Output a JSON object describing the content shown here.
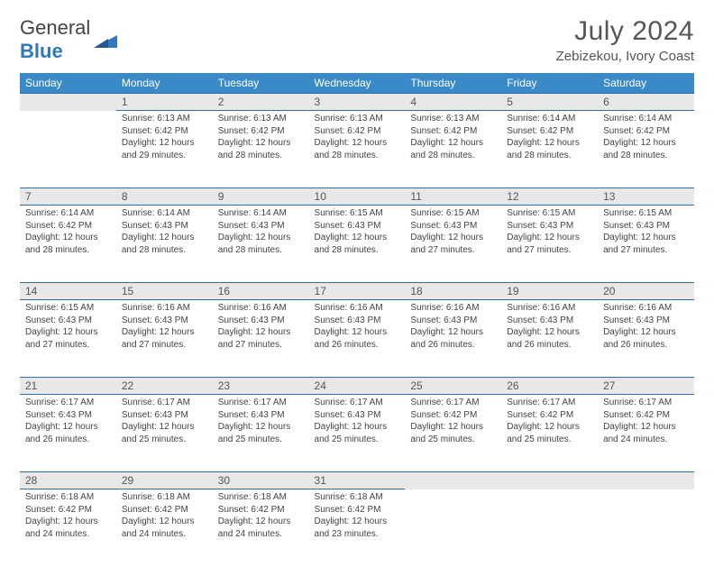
{
  "brand": {
    "text1": "General",
    "text2": "Blue"
  },
  "header": {
    "title": "July 2024",
    "location": "Zebizekou, Ivory Coast"
  },
  "colors": {
    "header_bg": "#3a8ac8",
    "header_text": "#ffffff",
    "row_accent": "#2f6fa8",
    "daynum_bg": "#e8e8e8",
    "text": "#444444",
    "brand_blue": "#2f78bd"
  },
  "typography": {
    "title_fontsize": 30,
    "location_fontsize": 15,
    "weekday_fontsize": 12,
    "daynum_fontsize": 12,
    "body_fontsize": 10
  },
  "weekdays": [
    "Sunday",
    "Monday",
    "Tuesday",
    "Wednesday",
    "Thursday",
    "Friday",
    "Saturday"
  ],
  "weeks": [
    [
      null,
      {
        "n": "1",
        "sr": "6:13 AM",
        "ss": "6:42 PM",
        "dl": "12 hours and 29 minutes."
      },
      {
        "n": "2",
        "sr": "6:13 AM",
        "ss": "6:42 PM",
        "dl": "12 hours and 28 minutes."
      },
      {
        "n": "3",
        "sr": "6:13 AM",
        "ss": "6:42 PM",
        "dl": "12 hours and 28 minutes."
      },
      {
        "n": "4",
        "sr": "6:13 AM",
        "ss": "6:42 PM",
        "dl": "12 hours and 28 minutes."
      },
      {
        "n": "5",
        "sr": "6:14 AM",
        "ss": "6:42 PM",
        "dl": "12 hours and 28 minutes."
      },
      {
        "n": "6",
        "sr": "6:14 AM",
        "ss": "6:42 PM",
        "dl": "12 hours and 28 minutes."
      }
    ],
    [
      {
        "n": "7",
        "sr": "6:14 AM",
        "ss": "6:42 PM",
        "dl": "12 hours and 28 minutes."
      },
      {
        "n": "8",
        "sr": "6:14 AM",
        "ss": "6:43 PM",
        "dl": "12 hours and 28 minutes."
      },
      {
        "n": "9",
        "sr": "6:14 AM",
        "ss": "6:43 PM",
        "dl": "12 hours and 28 minutes."
      },
      {
        "n": "10",
        "sr": "6:15 AM",
        "ss": "6:43 PM",
        "dl": "12 hours and 28 minutes."
      },
      {
        "n": "11",
        "sr": "6:15 AM",
        "ss": "6:43 PM",
        "dl": "12 hours and 27 minutes."
      },
      {
        "n": "12",
        "sr": "6:15 AM",
        "ss": "6:43 PM",
        "dl": "12 hours and 27 minutes."
      },
      {
        "n": "13",
        "sr": "6:15 AM",
        "ss": "6:43 PM",
        "dl": "12 hours and 27 minutes."
      }
    ],
    [
      {
        "n": "14",
        "sr": "6:15 AM",
        "ss": "6:43 PM",
        "dl": "12 hours and 27 minutes."
      },
      {
        "n": "15",
        "sr": "6:16 AM",
        "ss": "6:43 PM",
        "dl": "12 hours and 27 minutes."
      },
      {
        "n": "16",
        "sr": "6:16 AM",
        "ss": "6:43 PM",
        "dl": "12 hours and 27 minutes."
      },
      {
        "n": "17",
        "sr": "6:16 AM",
        "ss": "6:43 PM",
        "dl": "12 hours and 26 minutes."
      },
      {
        "n": "18",
        "sr": "6:16 AM",
        "ss": "6:43 PM",
        "dl": "12 hours and 26 minutes."
      },
      {
        "n": "19",
        "sr": "6:16 AM",
        "ss": "6:43 PM",
        "dl": "12 hours and 26 minutes."
      },
      {
        "n": "20",
        "sr": "6:16 AM",
        "ss": "6:43 PM",
        "dl": "12 hours and 26 minutes."
      }
    ],
    [
      {
        "n": "21",
        "sr": "6:17 AM",
        "ss": "6:43 PM",
        "dl": "12 hours and 26 minutes."
      },
      {
        "n": "22",
        "sr": "6:17 AM",
        "ss": "6:43 PM",
        "dl": "12 hours and 25 minutes."
      },
      {
        "n": "23",
        "sr": "6:17 AM",
        "ss": "6:43 PM",
        "dl": "12 hours and 25 minutes."
      },
      {
        "n": "24",
        "sr": "6:17 AM",
        "ss": "6:43 PM",
        "dl": "12 hours and 25 minutes."
      },
      {
        "n": "25",
        "sr": "6:17 AM",
        "ss": "6:42 PM",
        "dl": "12 hours and 25 minutes."
      },
      {
        "n": "26",
        "sr": "6:17 AM",
        "ss": "6:42 PM",
        "dl": "12 hours and 25 minutes."
      },
      {
        "n": "27",
        "sr": "6:17 AM",
        "ss": "6:42 PM",
        "dl": "12 hours and 24 minutes."
      }
    ],
    [
      {
        "n": "28",
        "sr": "6:18 AM",
        "ss": "6:42 PM",
        "dl": "12 hours and 24 minutes."
      },
      {
        "n": "29",
        "sr": "6:18 AM",
        "ss": "6:42 PM",
        "dl": "12 hours and 24 minutes."
      },
      {
        "n": "30",
        "sr": "6:18 AM",
        "ss": "6:42 PM",
        "dl": "12 hours and 24 minutes."
      },
      {
        "n": "31",
        "sr": "6:18 AM",
        "ss": "6:42 PM",
        "dl": "12 hours and 23 minutes."
      },
      null,
      null,
      null
    ]
  ],
  "labels": {
    "sunrise": "Sunrise:",
    "sunset": "Sunset:",
    "daylight": "Daylight:"
  }
}
